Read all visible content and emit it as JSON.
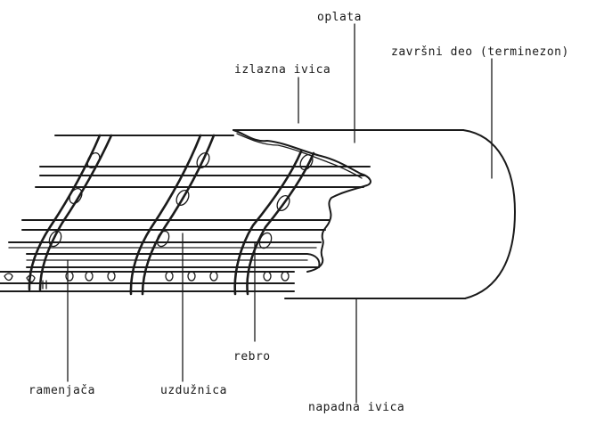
{
  "labels": {
    "oplata": "oplata",
    "zavrsni_deo": "završni deo (terminezon)",
    "izlazna_ivica": "izlazna ivica",
    "rebro": "rebro",
    "ramenjaca": "ramenjača",
    "uzduznica": "uzdužnica",
    "napadna_ivica": "napadna ivica"
  }
}
